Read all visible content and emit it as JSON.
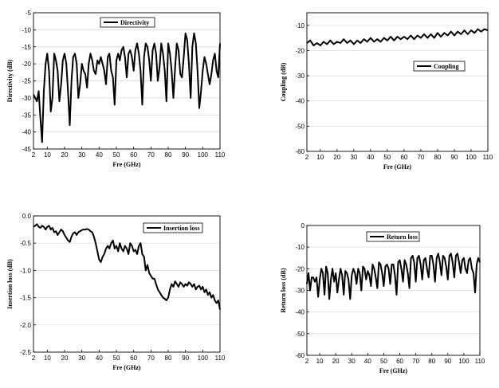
{
  "chart_data": [
    {
      "type": "line",
      "xlabel": "Fre (GHz)",
      "ylabel": "Directivity (dB)",
      "xlim": [
        2,
        110
      ],
      "ylim": [
        -45,
        -5
      ],
      "xticks": [
        2,
        10,
        20,
        30,
        40,
        50,
        60,
        70,
        80,
        90,
        100,
        110
      ],
      "yticks": [
        -5,
        -10,
        -15,
        -20,
        -25,
        -30,
        -35,
        -40,
        -45
      ],
      "grid": "horizontal",
      "legend": "top-left",
      "series": [
        {
          "name": "Directivity",
          "x": [
            2,
            3,
            4,
            5,
            6,
            7,
            8,
            9,
            10,
            11,
            12,
            13,
            14,
            15,
            16,
            17,
            18,
            19,
            20,
            21,
            22,
            23,
            24,
            25,
            26,
            27,
            28,
            29,
            30,
            31,
            32,
            33,
            34,
            35,
            36,
            37,
            38,
            39,
            40,
            41,
            42,
            43,
            44,
            45,
            46,
            47,
            48,
            49,
            50,
            51,
            52,
            53,
            54,
            55,
            56,
            57,
            58,
            59,
            60,
            61,
            62,
            63,
            64,
            65,
            66,
            67,
            68,
            69,
            70,
            71,
            72,
            73,
            74,
            75,
            76,
            77,
            78,
            79,
            80,
            81,
            82,
            83,
            84,
            85,
            86,
            87,
            88,
            89,
            90,
            91,
            92,
            93,
            94,
            95,
            96,
            97,
            98,
            99,
            100,
            101,
            102,
            103,
            104,
            105,
            106,
            107,
            108,
            109,
            110
          ],
          "y": [
            -29,
            -30,
            -31,
            -28,
            -36,
            -43,
            -28,
            -20,
            -17,
            -22,
            -34,
            -30,
            -17,
            -19,
            -22,
            -31,
            -26,
            -19,
            -17,
            -20,
            -28,
            -38,
            -25,
            -18,
            -17,
            -20,
            -30,
            -26,
            -20,
            -22,
            -23,
            -27,
            -20,
            -17,
            -19,
            -22,
            -23,
            -19,
            -20,
            -18,
            -20,
            -22,
            -26,
            -18,
            -17,
            -22,
            -24,
            -32,
            -19,
            -17,
            -19,
            -16,
            -15,
            -18,
            -24,
            -17,
            -16,
            -18,
            -22,
            -16,
            -14,
            -17,
            -22,
            -32,
            -18,
            -14,
            -15,
            -19,
            -25,
            -16,
            -14,
            -17,
            -25,
            -21,
            -14,
            -17,
            -22,
            -31,
            -14,
            -17,
            -22,
            -30,
            -21,
            -14,
            -16,
            -23,
            -24,
            -18,
            -11,
            -13,
            -20,
            -30,
            -15,
            -11,
            -14,
            -22,
            -33,
            -28,
            -22,
            -18,
            -20,
            -23,
            -26,
            -23,
            -19,
            -17,
            -22,
            -24,
            -14
          ],
          "color": "#000000"
        }
      ]
    },
    {
      "type": "line",
      "xlabel": "Fre (GHz)",
      "ylabel": "Coupling (dB)",
      "xlim": [
        2,
        110
      ],
      "ylim": [
        -60,
        -5
      ],
      "xticks": [
        2,
        10,
        20,
        30,
        40,
        50,
        60,
        70,
        80,
        90,
        100,
        110
      ],
      "yticks": [
        -10,
        -20,
        -30,
        -40,
        -50,
        -60
      ],
      "grid": "horizontal",
      "legend": "top-right",
      "series": [
        {
          "name": "Coupling",
          "x": [
            2,
            4,
            6,
            8,
            10,
            12,
            14,
            16,
            18,
            20,
            22,
            24,
            26,
            28,
            30,
            32,
            34,
            36,
            38,
            40,
            42,
            44,
            46,
            48,
            50,
            52,
            54,
            56,
            58,
            60,
            62,
            64,
            66,
            68,
            70,
            72,
            74,
            76,
            78,
            80,
            82,
            84,
            86,
            88,
            90,
            92,
            94,
            96,
            98,
            100,
            102,
            104,
            106,
            108,
            110
          ],
          "y": [
            -17,
            -16,
            -18,
            -17,
            -18,
            -16.5,
            -17.5,
            -16,
            -17.5,
            -16.5,
            -17,
            -15.5,
            -17,
            -16,
            -17.5,
            -16,
            -17,
            -15.5,
            -16.5,
            -15,
            -16.5,
            -15.5,
            -16.5,
            -15,
            -16,
            -14.5,
            -16,
            -14.5,
            -15.5,
            -14.5,
            -15.5,
            -14,
            -15.5,
            -14,
            -15,
            -13.5,
            -15,
            -13.5,
            -15,
            -13,
            -14.5,
            -13,
            -14,
            -12.5,
            -14,
            -12.5,
            -13.5,
            -12,
            -13.5,
            -12,
            -13,
            -11.5,
            -12.5,
            -11.5,
            -12
          ],
          "color": "#000000"
        }
      ]
    },
    {
      "type": "line",
      "xlabel": "Fre (GHz)",
      "ylabel": "Insertion loss (dB)",
      "xlim": [
        2,
        110
      ],
      "ylim": [
        -2.5,
        0.0
      ],
      "xticks": [
        2,
        10,
        20,
        30,
        40,
        50,
        60,
        70,
        80,
        90,
        100,
        110
      ],
      "yticks": [
        0.0,
        -0.5,
        -1.0,
        -1.5,
        -2.0,
        -2.5
      ],
      "grid": "horizontal",
      "legend": "top-right",
      "series": [
        {
          "name": "Insertion loss",
          "x": [
            2,
            3,
            4,
            5,
            6,
            7,
            8,
            9,
            10,
            11,
            12,
            13,
            14,
            15,
            16,
            17,
            18,
            19,
            20,
            21,
            22,
            23,
            24,
            25,
            26,
            27,
            28,
            29,
            30,
            31,
            32,
            33,
            34,
            35,
            36,
            37,
            38,
            39,
            40,
            41,
            42,
            43,
            44,
            45,
            46,
            47,
            48,
            49,
            50,
            51,
            52,
            53,
            54,
            55,
            56,
            57,
            58,
            59,
            60,
            61,
            62,
            63,
            64,
            65,
            66,
            67,
            68,
            69,
            70,
            71,
            72,
            73,
            74,
            75,
            76,
            77,
            78,
            79,
            80,
            81,
            82,
            83,
            84,
            85,
            86,
            87,
            88,
            89,
            90,
            91,
            92,
            93,
            94,
            95,
            96,
            97,
            98,
            99,
            100,
            101,
            102,
            103,
            104,
            105,
            106,
            107,
            108,
            109,
            110
          ],
          "y": [
            -0.2,
            -0.18,
            -0.15,
            -0.2,
            -0.22,
            -0.18,
            -0.2,
            -0.25,
            -0.2,
            -0.18,
            -0.25,
            -0.22,
            -0.3,
            -0.28,
            -0.35,
            -0.3,
            -0.25,
            -0.28,
            -0.35,
            -0.4,
            -0.45,
            -0.48,
            -0.38,
            -0.32,
            -0.3,
            -0.35,
            -0.3,
            -0.28,
            -0.26,
            -0.25,
            -0.25,
            -0.24,
            -0.25,
            -0.28,
            -0.3,
            -0.38,
            -0.5,
            -0.65,
            -0.8,
            -0.85,
            -0.75,
            -0.7,
            -0.6,
            -0.55,
            -0.6,
            -0.5,
            -0.45,
            -0.6,
            -0.55,
            -0.65,
            -0.5,
            -0.6,
            -0.65,
            -0.55,
            -0.6,
            -0.7,
            -0.5,
            -0.55,
            -0.65,
            -0.62,
            -0.7,
            -0.55,
            -0.5,
            -0.7,
            -0.75,
            -1.0,
            -0.9,
            -1.05,
            -1.1,
            -1.15,
            -1.15,
            -1.25,
            -1.35,
            -1.4,
            -1.45,
            -1.5,
            -1.52,
            -1.55,
            -1.5,
            -1.35,
            -1.25,
            -1.3,
            -1.2,
            -1.25,
            -1.3,
            -1.22,
            -1.25,
            -1.3,
            -1.25,
            -1.28,
            -1.22,
            -1.25,
            -1.3,
            -1.25,
            -1.35,
            -1.3,
            -1.28,
            -1.35,
            -1.3,
            -1.4,
            -1.35,
            -1.45,
            -1.4,
            -1.5,
            -1.45,
            -1.55,
            -1.6,
            -1.55,
            -1.72
          ],
          "color": "#000000"
        }
      ]
    },
    {
      "type": "line",
      "xlabel": "Fre (GHz)",
      "ylabel": "Return loss (dB)",
      "xlim": [
        2,
        110
      ],
      "ylim": [
        -60,
        0
      ],
      "xticks": [
        2,
        10,
        20,
        30,
        40,
        50,
        60,
        70,
        80,
        90,
        100,
        110
      ],
      "yticks": [
        0,
        -10,
        -20,
        -30,
        -40,
        -50,
        -60
      ],
      "grid": "horizontal",
      "legend": "top-left",
      "series": [
        {
          "name": "Return loss",
          "x": [
            2,
            3,
            4,
            5,
            6,
            7,
            8,
            9,
            10,
            11,
            12,
            13,
            14,
            15,
            16,
            17,
            18,
            19,
            20,
            21,
            22,
            23,
            24,
            25,
            26,
            27,
            28,
            29,
            30,
            31,
            32,
            33,
            34,
            35,
            36,
            37,
            38,
            39,
            40,
            41,
            42,
            43,
            44,
            45,
            46,
            47,
            48,
            49,
            50,
            51,
            52,
            53,
            54,
            55,
            56,
            57,
            58,
            59,
            60,
            61,
            62,
            63,
            64,
            65,
            66,
            67,
            68,
            69,
            70,
            71,
            72,
            73,
            74,
            75,
            76,
            77,
            78,
            79,
            80,
            81,
            82,
            83,
            84,
            85,
            86,
            87,
            88,
            89,
            90,
            91,
            92,
            93,
            94,
            95,
            96,
            97,
            98,
            99,
            100,
            101,
            102,
            103,
            104,
            105,
            106,
            107,
            108,
            109,
            110
          ],
          "y": [
            -27,
            -22,
            -30,
            -24,
            -24,
            -26,
            -24,
            -33,
            -25,
            -20,
            -22,
            -32,
            -19,
            -22,
            -34,
            -25,
            -20,
            -26,
            -22,
            -31,
            -25,
            -20,
            -23,
            -32,
            -21,
            -22,
            -25,
            -34,
            -23,
            -20,
            -22,
            -27,
            -20,
            -22,
            -30,
            -19,
            -20,
            -25,
            -21,
            -23,
            -28,
            -18,
            -20,
            -24,
            -29,
            -17,
            -18,
            -22,
            -28,
            -19,
            -18,
            -20,
            -27,
            -18,
            -18,
            -23,
            -32,
            -17,
            -16,
            -20,
            -26,
            -16,
            -18,
            -22,
            -29,
            -15,
            -14,
            -17,
            -26,
            -15,
            -14,
            -18,
            -25,
            -16,
            -15,
            -20,
            -24,
            -14,
            -14,
            -18,
            -26,
            -15,
            -13,
            -17,
            -23,
            -14,
            -15,
            -19,
            -25,
            -14,
            -13,
            -17,
            -24,
            -14,
            -13,
            -17,
            -22,
            -16,
            -15,
            -20,
            -22,
            -16,
            -15,
            -20,
            -22,
            -31,
            -18,
            -15,
            -17
          ],
          "color": "#000000"
        }
      ]
    }
  ]
}
